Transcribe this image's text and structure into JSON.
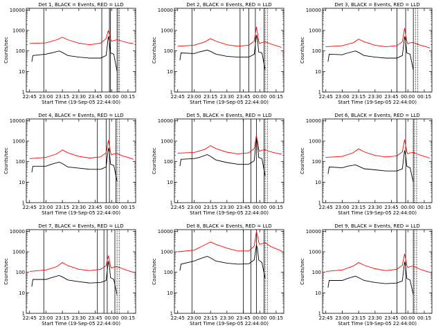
{
  "chart_data": [
    {
      "type": "line",
      "title": "Det 1, BLACK = Events, RED = LLD",
      "xlabel": "Start Time (19-Sep-05 22:44:00)",
      "ylabel": "Counts/sec",
      "xticks": [
        "22:45",
        "23:00",
        "23:15",
        "23:30",
        "23:45",
        "00:00",
        "00:15"
      ],
      "yticks": [
        "1",
        "10",
        "100",
        "1000",
        "10000"
      ],
      "ylim": [
        1,
        12000
      ],
      "yscale": "log",
      "vlines_solid": [
        "22:58",
        "23:51",
        "23:58",
        "23:59",
        "00:05"
      ],
      "vlines_dotted": [
        "00:06",
        "00:07"
      ],
      "series": [
        {
          "color": "#ff0000",
          "x": [
            "22:45",
            "23:00",
            "23:10",
            "23:15",
            "23:20",
            "23:30",
            "23:40",
            "23:50",
            "23:55",
            "23:57",
            "23:58",
            "23:59",
            "00:00",
            "00:02",
            "00:05",
            "00:10",
            "00:15",
            "00:20"
          ],
          "y": [
            230,
            250,
            350,
            470,
            350,
            240,
            200,
            240,
            400,
            1000,
            600,
            380,
            300,
            320,
            350,
            300,
            250,
            230
          ]
        },
        {
          "color": "#000000",
          "x": [
            "22:47",
            "22:48",
            "23:00",
            "23:05",
            "23:12",
            "23:15",
            "23:20",
            "23:30",
            "23:40",
            "23:50",
            "23:55",
            "23:57",
            "23:58",
            "23:59",
            "00:02",
            "00:05"
          ],
          "y": [
            30,
            60,
            70,
            80,
            100,
            85,
            60,
            50,
            45,
            45,
            60,
            500,
            300,
            80,
            70,
            10
          ]
        }
      ]
    },
    {
      "type": "line",
      "title": "Det 2, BLACK = Events, RED = LLD",
      "xlabel": "Start Time (19-Sep-05 22:44:00)",
      "ylabel": "Counts/sec",
      "xticks": [
        "22:45",
        "23:00",
        "23:15",
        "23:30",
        "23:45",
        "00:00",
        "00:15"
      ],
      "yticks": [
        "1",
        "10",
        "100",
        "1000",
        "10000"
      ],
      "ylim": [
        1,
        12000
      ],
      "yscale": "log",
      "vlines_solid": [
        "22:58",
        "23:42",
        "23:50",
        "23:56",
        "00:04"
      ],
      "vlines_dotted": [
        "00:05",
        "00:07"
      ],
      "series": [
        {
          "color": "#ff0000",
          "x": [
            "22:45",
            "23:00",
            "23:10",
            "23:15",
            "23:20",
            "23:30",
            "23:40",
            "23:50",
            "23:55",
            "23:57",
            "23:58",
            "23:59",
            "00:00",
            "00:02",
            "00:05",
            "00:10",
            "00:15",
            "00:20"
          ],
          "y": [
            170,
            190,
            280,
            400,
            300,
            200,
            170,
            190,
            300,
            1500,
            700,
            300,
            230,
            260,
            280,
            220,
            180,
            150
          ]
        },
        {
          "color": "#000000",
          "x": [
            "22:47",
            "22:48",
            "23:00",
            "23:05",
            "23:12",
            "23:15",
            "23:20",
            "23:30",
            "23:40",
            "23:50",
            "23:55",
            "23:57",
            "23:58",
            "23:59",
            "00:02",
            "00:05"
          ],
          "y": [
            35,
            80,
            75,
            90,
            110,
            95,
            70,
            55,
            50,
            50,
            70,
            600,
            350,
            90,
            80,
            12
          ]
        }
      ]
    },
    {
      "type": "line",
      "title": "Det 3, BLACK = Events, RED = LLD",
      "xlabel": "Start Time (19-Sep-05 22:44:00)",
      "ylabel": "Counts/sec",
      "xticks": [
        "22:45",
        "23:00",
        "23:15",
        "23:30",
        "23:45",
        "00:00",
        "00:15"
      ],
      "yticks": [
        "1",
        "10",
        "100",
        "1000",
        "10000"
      ],
      "ylim": [
        1,
        12000
      ],
      "yscale": "log",
      "vlines_solid": [
        "23:50",
        "23:58",
        "00:05"
      ],
      "vlines_dotted": [
        "00:07",
        "00:09"
      ],
      "series": [
        {
          "color": "#ff0000",
          "x": [
            "22:45",
            "23:00",
            "23:10",
            "23:15",
            "23:20",
            "23:30",
            "23:40",
            "23:50",
            "23:55",
            "23:57",
            "23:58",
            "23:59",
            "00:00",
            "00:02",
            "00:05",
            "00:10",
            "00:15",
            "00:20"
          ],
          "y": [
            160,
            180,
            250,
            380,
            280,
            190,
            160,
            180,
            280,
            1300,
            600,
            300,
            220,
            250,
            260,
            200,
            170,
            140
          ]
        },
        {
          "color": "#000000",
          "x": [
            "22:47",
            "22:48",
            "23:00",
            "23:05",
            "23:12",
            "23:15",
            "23:20",
            "23:30",
            "23:40",
            "23:50",
            "23:55",
            "23:57",
            "23:58",
            "23:59",
            "00:02",
            "00:05"
          ],
          "y": [
            30,
            70,
            65,
            80,
            100,
            85,
            60,
            50,
            45,
            45,
            60,
            500,
            300,
            80,
            70,
            12
          ]
        }
      ]
    },
    {
      "type": "line",
      "title": "Det 4, BLACK = Events, RED = LLD",
      "xlabel": "Start Time (19-Sep-05 22:44:00)",
      "ylabel": "Counts/sec",
      "xticks": [
        "22:45",
        "23:00",
        "23:15",
        "23:30",
        "23:45",
        "00:00",
        "00:15"
      ],
      "yticks": [
        "1",
        "10",
        "100",
        "1000",
        "10000"
      ],
      "ylim": [
        1,
        12000
      ],
      "yscale": "log",
      "vlines_solid": [
        "22:58",
        "23:47",
        "23:55",
        "23:58",
        "00:04"
      ],
      "vlines_dotted": [
        "00:05",
        "00:07"
      ],
      "series": [
        {
          "color": "#ff0000",
          "x": [
            "22:45",
            "23:00",
            "23:10",
            "23:15",
            "23:20",
            "23:30",
            "23:40",
            "23:50",
            "23:55",
            "23:57",
            "23:58",
            "23:59",
            "00:00",
            "00:02",
            "00:05",
            "00:10",
            "00:15",
            "00:20"
          ],
          "y": [
            140,
            160,
            240,
            370,
            270,
            180,
            150,
            170,
            270,
            1100,
            550,
            280,
            210,
            240,
            250,
            190,
            160,
            130
          ]
        },
        {
          "color": "#000000",
          "x": [
            "22:47",
            "22:48",
            "23:00",
            "23:05",
            "23:12",
            "23:15",
            "23:20",
            "23:30",
            "23:40",
            "23:50",
            "23:55",
            "23:57",
            "23:58",
            "23:59",
            "00:02",
            "00:05"
          ],
          "y": [
            30,
            60,
            60,
            75,
            95,
            80,
            55,
            48,
            42,
            42,
            55,
            450,
            280,
            75,
            65,
            11
          ]
        }
      ]
    },
    {
      "type": "line",
      "title": "Det 5, BLACK = Events, RED = LLD",
      "xlabel": "Start Time (19-Sep-05 22:44:00)",
      "ylabel": "Counts/sec",
      "xticks": [
        "22:45",
        "23:00",
        "23:15",
        "23:30",
        "23:45",
        "00:00",
        "00:15"
      ],
      "yticks": [
        "1",
        "10",
        "100",
        "1000",
        "10000"
      ],
      "ylim": [
        1,
        12000
      ],
      "yscale": "log",
      "vlines_solid": [
        "22:58",
        "23:45",
        "23:52",
        "23:57",
        "00:04"
      ],
      "vlines_dotted": [
        "00:05",
        "00:07"
      ],
      "series": [
        {
          "color": "#ff0000",
          "x": [
            "22:45",
            "23:00",
            "23:10",
            "23:15",
            "23:20",
            "23:30",
            "23:40",
            "23:50",
            "23:55",
            "23:57",
            "23:58",
            "23:59",
            "00:00",
            "00:02",
            "00:05",
            "00:10",
            "00:15",
            "00:20"
          ],
          "y": [
            260,
            280,
            400,
            600,
            430,
            290,
            240,
            270,
            430,
            2000,
            900,
            400,
            320,
            360,
            380,
            300,
            260,
            230
          ]
        },
        {
          "color": "#000000",
          "x": [
            "22:47",
            "22:48",
            "23:00",
            "23:05",
            "23:12",
            "23:15",
            "23:20",
            "23:30",
            "23:40",
            "23:50",
            "23:55",
            "23:57",
            "23:58",
            "23:59",
            "00:02",
            "00:05"
          ],
          "y": [
            60,
            130,
            140,
            160,
            220,
            180,
            120,
            90,
            75,
            75,
            110,
            1300,
            700,
            160,
            140,
            20
          ]
        }
      ]
    },
    {
      "type": "line",
      "title": "Det 6, BLACK = Events, RED = LLD",
      "xlabel": "Start Time (19-Sep-05 22:44:00)",
      "ylabel": "Counts/sec",
      "xticks": [
        "22:45",
        "23:00",
        "23:15",
        "23:30",
        "23:45",
        "00:00",
        "00:15"
      ],
      "yticks": [
        "1",
        "10",
        "100",
        "1000",
        "10000"
      ],
      "ylim": [
        1,
        12000
      ],
      "yscale": "log",
      "vlines_solid": [
        "23:50",
        "23:58",
        "00:05"
      ],
      "vlines_dotted": [
        "00:06",
        "00:08"
      ],
      "series": [
        {
          "color": "#ff0000",
          "x": [
            "22:45",
            "23:00",
            "23:10",
            "23:15",
            "23:20",
            "23:30",
            "23:40",
            "23:50",
            "23:55",
            "23:57",
            "23:58",
            "23:59",
            "00:00",
            "00:02",
            "00:05",
            "00:10",
            "00:15",
            "00:20"
          ],
          "y": [
            160,
            180,
            270,
            420,
            300,
            200,
            170,
            190,
            300,
            1200,
            600,
            310,
            240,
            270,
            280,
            220,
            180,
            150
          ]
        },
        {
          "color": "#000000",
          "x": [
            "22:47",
            "22:48",
            "23:00",
            "23:05",
            "23:12",
            "23:15",
            "23:20",
            "23:30",
            "23:40",
            "23:50",
            "23:55",
            "23:57",
            "23:58",
            "23:59",
            "00:02",
            "00:05"
          ],
          "y": [
            25,
            55,
            50,
            60,
            70,
            60,
            45,
            40,
            35,
            35,
            45,
            350,
            200,
            60,
            50,
            10
          ]
        }
      ]
    },
    {
      "type": "line",
      "title": "Det 7, BLACK = Events, RED = LLD",
      "xlabel": "Start Time (19-Sep-05 22:44:00)",
      "ylabel": "Counts/sec",
      "xticks": [
        "22:45",
        "23:00",
        "23:15",
        "23:30",
        "23:45",
        "00:00",
        "00:15"
      ],
      "yticks": [
        "1",
        "10",
        "100",
        "1000",
        "10000"
      ],
      "ylim": [
        1,
        12000
      ],
      "yscale": "log",
      "vlines_solid": [
        "22:58",
        "23:47",
        "23:53",
        "23:56",
        "00:03"
      ],
      "vlines_dotted": [
        "00:05",
        "00:07"
      ],
      "series": [
        {
          "color": "#ff0000",
          "x": [
            "22:45",
            "23:00",
            "23:10",
            "23:15",
            "23:20",
            "23:30",
            "23:40",
            "23:50",
            "23:55",
            "23:57",
            "23:58",
            "23:59",
            "00:00",
            "00:02",
            "00:05",
            "00:10",
            "00:15",
            "00:20"
          ],
          "y": [
            110,
            130,
            190,
            300,
            210,
            140,
            120,
            140,
            210,
            650,
            380,
            200,
            160,
            180,
            190,
            150,
            120,
            100
          ]
        },
        {
          "color": "#000000",
          "x": [
            "22:47",
            "22:48",
            "23:00",
            "23:05",
            "23:12",
            "23:15",
            "23:20",
            "23:30",
            "23:40",
            "23:50",
            "23:55",
            "23:57",
            "23:58",
            "23:59",
            "00:02",
            "00:05"
          ],
          "y": [
            20,
            45,
            45,
            55,
            70,
            60,
            42,
            35,
            30,
            32,
            40,
            350,
            200,
            55,
            45,
            8
          ]
        }
      ]
    },
    {
      "type": "line",
      "title": "Det 8, BLACK = Events, RED = LLD",
      "xlabel": "Start Time (19-Sep-05 22:44:00)",
      "ylabel": "Counts/sec",
      "xticks": [
        "22:45",
        "23:00",
        "23:15",
        "23:30",
        "23:45",
        "00:00",
        "00:15"
      ],
      "yticks": [
        "1",
        "10",
        "100",
        "1000",
        "10000"
      ],
      "ylim": [
        1,
        12000
      ],
      "yscale": "log",
      "vlines_solid": [
        "22:58",
        "23:45",
        "23:52",
        "23:57",
        "00:04"
      ],
      "vlines_dotted": [
        "00:05",
        "00:07"
      ],
      "series": [
        {
          "color": "#ff0000",
          "x": [
            "22:45",
            "23:00",
            "23:10",
            "23:15",
            "23:20",
            "23:30",
            "23:40",
            "23:50",
            "23:55",
            "23:57",
            "23:58",
            "23:59",
            "00:00",
            "00:02",
            "00:05",
            "00:10",
            "00:15",
            "00:20"
          ],
          "y": [
            1000,
            1200,
            2200,
            3000,
            2300,
            1500,
            1100,
            1100,
            1900,
            10000,
            6000,
            3000,
            2300,
            2500,
            2800,
            1800,
            1400,
            1100
          ]
        },
        {
          "color": "#000000",
          "x": [
            "22:47",
            "22:48",
            "23:00",
            "23:05",
            "23:12",
            "23:15",
            "23:20",
            "23:30",
            "23:40",
            "23:50",
            "23:55",
            "23:57",
            "23:58",
            "23:59",
            "00:02",
            "00:05"
          ],
          "y": [
            120,
            250,
            350,
            450,
            600,
            500,
            350,
            280,
            250,
            260,
            400,
            2200,
            1300,
            400,
            300,
            50
          ]
        }
      ]
    },
    {
      "type": "line",
      "title": "Det 9, BLACK = Events, RED = LLD",
      "xlabel": "Start Time (19-Sep-05 22:44:00)",
      "ylabel": "Counts/sec",
      "xticks": [
        "22:45",
        "23:00",
        "23:15",
        "23:30",
        "23:45",
        "00:00",
        "00:15"
      ],
      "yticks": [
        "1",
        "10",
        "100",
        "1000",
        "10000"
      ],
      "ylim": [
        1,
        12000
      ],
      "yscale": "log",
      "vlines_solid": [
        "23:50",
        "23:58",
        "00:05"
      ],
      "vlines_dotted": [
        "00:06",
        "00:08"
      ],
      "series": [
        {
          "color": "#ff0000",
          "x": [
            "22:45",
            "23:00",
            "23:10",
            "23:15",
            "23:20",
            "23:30",
            "23:40",
            "23:50",
            "23:55",
            "23:57",
            "23:58",
            "23:59",
            "00:00",
            "00:02",
            "00:05",
            "00:10",
            "00:15",
            "00:20"
          ],
          "y": [
            110,
            130,
            200,
            300,
            220,
            150,
            120,
            140,
            220,
            800,
            420,
            220,
            170,
            190,
            200,
            150,
            120,
            100
          ]
        },
        {
          "color": "#000000",
          "x": [
            "22:47",
            "22:48",
            "23:00",
            "23:05",
            "23:12",
            "23:15",
            "23:20",
            "23:30",
            "23:40",
            "23:50",
            "23:55",
            "23:57",
            "23:58",
            "23:59",
            "00:02",
            "00:05"
          ],
          "y": [
            18,
            40,
            40,
            50,
            65,
            55,
            40,
            32,
            28,
            30,
            38,
            320,
            190,
            50,
            42,
            8
          ]
        }
      ]
    }
  ]
}
